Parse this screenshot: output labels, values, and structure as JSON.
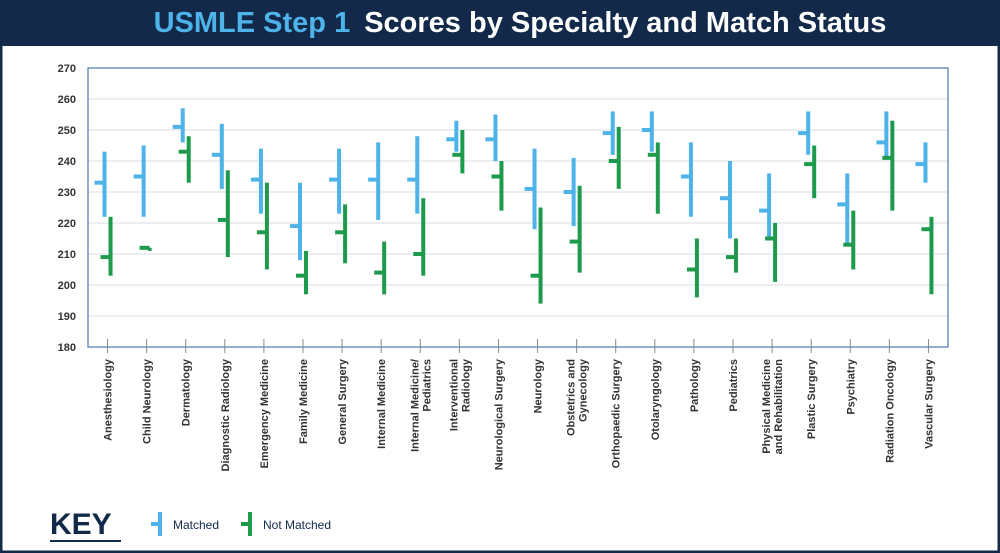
{
  "chart_data": {
    "type": "range",
    "title_parts": [
      "USMLE Step 1",
      "Scores by Specialty and Match Status"
    ],
    "legend_title": "KEY",
    "categories": [
      "Anesthesiology",
      "Child Neurology",
      "Dermatology",
      "Diagnostic Radiology",
      "Emergency Medicine",
      "Family Medicine",
      "General Surgery",
      "Internal Medicine",
      "Internal Medicine/\nPediatrics",
      "Interventional\nRadiology",
      "Neurological Surgery",
      "Neurology",
      "Obstetrics and\nGynecology",
      "Orthopaedic Surgery",
      "Otolaryngology",
      "Pathology",
      "Pediatrics",
      "Physical Medicine\nand Rehabilitation",
      "Plastic Surgery",
      "Psychiatry",
      "Radiation Oncology",
      "Vascular Surgery"
    ],
    "series": [
      {
        "name": "Matched",
        "color": "#4db3e8",
        "low": [
          222,
          222,
          246,
          231,
          223,
          208,
          223,
          221,
          223,
          243,
          240,
          218,
          219,
          242,
          243,
          222,
          215,
          215,
          242,
          213,
          241,
          233
        ],
        "high": [
          243,
          245,
          257,
          252,
          244,
          233,
          244,
          246,
          248,
          253,
          255,
          244,
          241,
          256,
          256,
          246,
          240,
          236,
          256,
          236,
          256,
          246
        ],
        "values": [
          233,
          235,
          251,
          242,
          234,
          219,
          234,
          234,
          234,
          247,
          247,
          231,
          230,
          249,
          250,
          235,
          228,
          224,
          249,
          226,
          246,
          239
        ]
      },
      {
        "name": "Not Matched",
        "color": "#1e9a4c",
        "low": [
          203,
          211,
          233,
          209,
          205,
          197,
          207,
          197,
          203,
          236,
          224,
          194,
          204,
          231,
          223,
          196,
          204,
          201,
          228,
          205,
          224,
          197
        ],
        "high": [
          222,
          212,
          248,
          237,
          233,
          211,
          226,
          214,
          228,
          250,
          240,
          225,
          232,
          251,
          246,
          215,
          215,
          220,
          245,
          224,
          253,
          222
        ],
        "values": [
          209,
          212,
          243,
          221,
          217,
          203,
          217,
          204,
          210,
          242,
          235,
          203,
          214,
          240,
          242,
          205,
          209,
          215,
          239,
          213,
          241,
          218
        ]
      }
    ],
    "ylim": [
      180,
      270
    ],
    "yticks": [
      180,
      190,
      200,
      210,
      220,
      230,
      240,
      250,
      260,
      270
    ],
    "grid": true
  }
}
